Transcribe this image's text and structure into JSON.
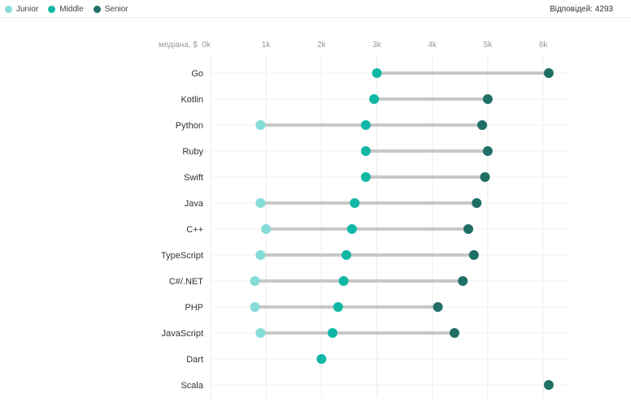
{
  "legend": [
    {
      "label": "Junior",
      "color": "#85dbd8"
    },
    {
      "label": "Middle",
      "color": "#11b7a5"
    },
    {
      "label": "Senior",
      "color": "#1f6f66"
    }
  ],
  "responses": {
    "label": "Відповідей:",
    "value": "4293"
  },
  "colors": {
    "connector": "#c8c8c8",
    "grid": "#ebebeb",
    "axis_text": "#999999",
    "category_text": "#333333"
  },
  "chart_data": {
    "type": "dot-range",
    "xlabel": "медіана, $",
    "xlim": [
      0,
      6000
    ],
    "x_ticks": [
      0,
      1000,
      2000,
      3000,
      4000,
      5000,
      6000
    ],
    "x_tick_labels": [
      "0k",
      "1k",
      "2k",
      "3k",
      "4k",
      "5k",
      "6k"
    ],
    "legend_position": "top-left",
    "grid": true,
    "categories": [
      "Go",
      "Kotlin",
      "Python",
      "Ruby",
      "Swift",
      "Java",
      "C++",
      "TypeScript",
      "C#/.NET",
      "PHP",
      "JavaScript",
      "Dart",
      "Scala"
    ],
    "series": [
      {
        "name": "Junior",
        "values": [
          null,
          null,
          900,
          null,
          null,
          900,
          1000,
          900,
          800,
          800,
          900,
          null,
          null
        ]
      },
      {
        "name": "Middle",
        "values": [
          3000,
          2950,
          2800,
          2800,
          2800,
          2600,
          2550,
          2450,
          2400,
          2300,
          2200,
          2000,
          null
        ]
      },
      {
        "name": "Senior",
        "values": [
          6100,
          5000,
          4900,
          5000,
          4950,
          4800,
          4650,
          4750,
          4550,
          4100,
          4400,
          null,
          6100
        ]
      }
    ]
  }
}
